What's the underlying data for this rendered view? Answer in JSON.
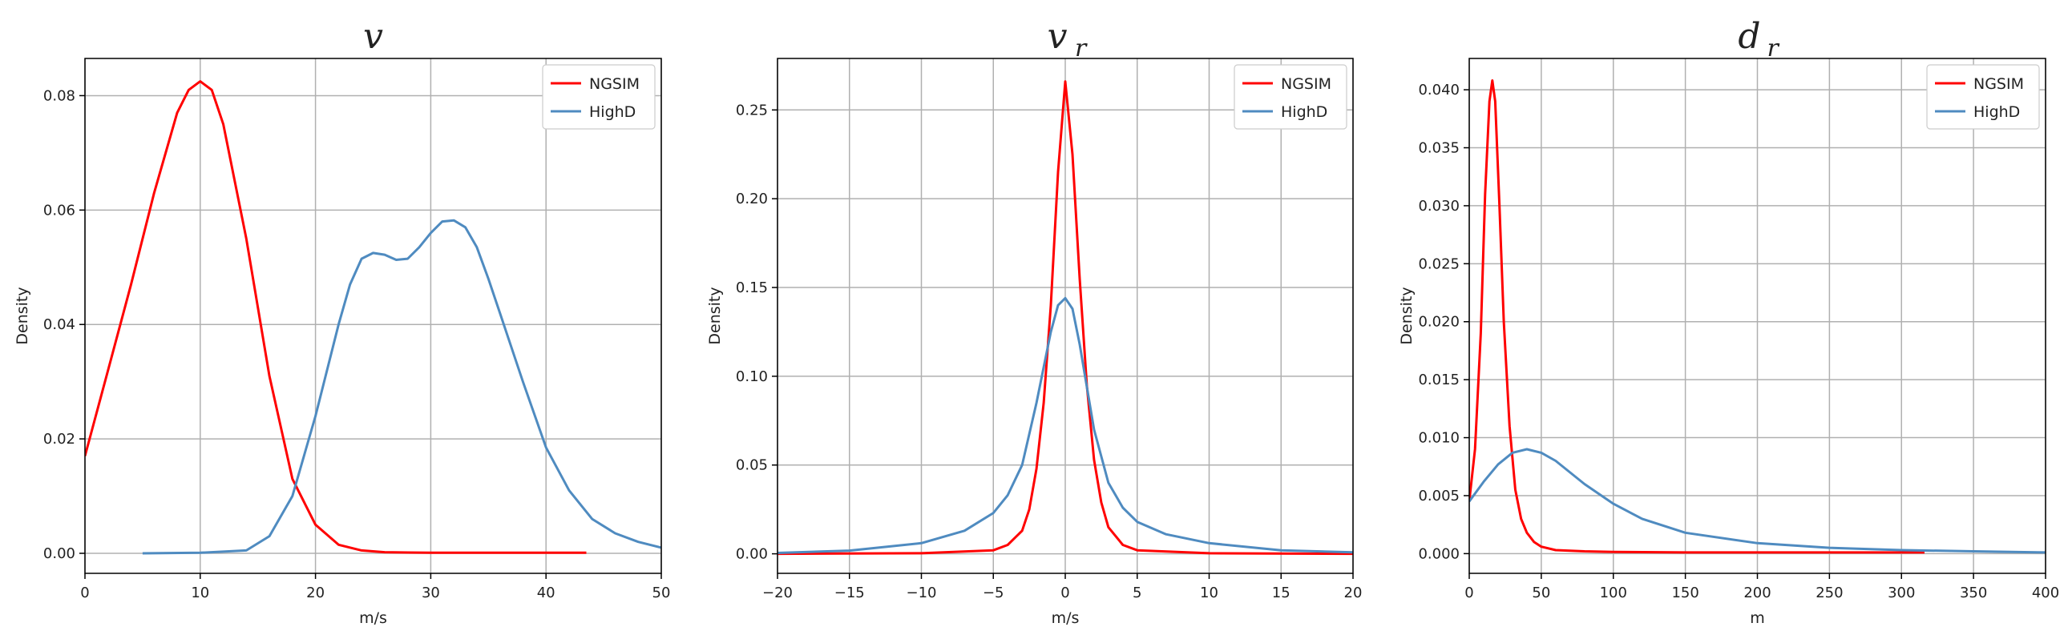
{
  "chart_data": [
    {
      "type": "line",
      "title": "v",
      "title_subscript": "",
      "xlabel": "m/s",
      "ylabel": "Density",
      "xlim": [
        0,
        50
      ],
      "ylim": [
        -0.0035,
        0.0865
      ],
      "xticks": [
        0,
        10,
        20,
        30,
        40,
        50
      ],
      "xtick_labels": [
        "0",
        "10",
        "20",
        "30",
        "40",
        "50"
      ],
      "yticks": [
        0,
        0.02,
        0.04,
        0.06,
        0.08
      ],
      "ytick_labels": [
        "0.00",
        "0.02",
        "0.04",
        "0.06",
        "0.08"
      ],
      "grid": true,
      "legend_position": "top-right",
      "series": [
        {
          "name": "NGSIM",
          "color": "#ff0000",
          "x": [
            0,
            2,
            4,
            6,
            8,
            9,
            10,
            11,
            12,
            14,
            16,
            18,
            20,
            22,
            24,
            26,
            30,
            35,
            40,
            43.5
          ],
          "y": [
            0.017,
            0.032,
            0.047,
            0.063,
            0.077,
            0.081,
            0.0825,
            0.081,
            0.075,
            0.055,
            0.031,
            0.013,
            0.005,
            0.0015,
            0.0005,
            0.0002,
            0.0001,
            0.0001,
            0.0001,
            0.0001
          ]
        },
        {
          "name": "HighD",
          "color": "#4f8bc0",
          "x": [
            5,
            10,
            14,
            16,
            18,
            20,
            22,
            23,
            24,
            25,
            26,
            27,
            28,
            29,
            30,
            31,
            32,
            33,
            34,
            35,
            36,
            38,
            40,
            42,
            44,
            46,
            48,
            50
          ],
          "y": [
            0,
            0.0001,
            0.0005,
            0.003,
            0.01,
            0.024,
            0.04,
            0.047,
            0.0515,
            0.0525,
            0.0522,
            0.0513,
            0.0515,
            0.0535,
            0.056,
            0.058,
            0.0582,
            0.057,
            0.0535,
            0.048,
            0.042,
            0.03,
            0.0185,
            0.011,
            0.006,
            0.0035,
            0.002,
            0.001
          ]
        }
      ]
    },
    {
      "type": "line",
      "title": "v",
      "title_subscript": "r",
      "xlabel": "m/s",
      "ylabel": "Density",
      "xlim": [
        -20,
        20
      ],
      "ylim": [
        -0.011,
        0.279
      ],
      "xticks": [
        -20,
        -15,
        -10,
        -5,
        0,
        5,
        10,
        15,
        20
      ],
      "xtick_labels": [
        "−20",
        "−15",
        "−10",
        "−5",
        "0",
        "5",
        "10",
        "15",
        "20"
      ],
      "yticks": [
        0,
        0.05,
        0.1,
        0.15,
        0.2,
        0.25
      ],
      "ytick_labels": [
        "0.00",
        "0.05",
        "0.10",
        "0.15",
        "0.20",
        "0.25"
      ],
      "grid": true,
      "legend_position": "top-right",
      "series": [
        {
          "name": "NGSIM",
          "color": "#ff0000",
          "x": [
            -20,
            -10,
            -5,
            -4,
            -3,
            -2.5,
            -2,
            -1.5,
            -1,
            -0.5,
            0,
            0.5,
            1,
            1.5,
            2,
            2.5,
            3,
            4,
            5,
            10,
            20
          ],
          "y": [
            0,
            0.0003,
            0.002,
            0.005,
            0.013,
            0.025,
            0.048,
            0.085,
            0.14,
            0.215,
            0.266,
            0.225,
            0.155,
            0.095,
            0.053,
            0.029,
            0.015,
            0.005,
            0.002,
            0.0003,
            0
          ]
        },
        {
          "name": "HighD",
          "color": "#4f8bc0",
          "x": [
            -20,
            -15,
            -10,
            -7,
            -5,
            -4,
            -3,
            -2,
            -1,
            -0.5,
            0,
            0.5,
            1,
            2,
            3,
            4,
            5,
            7,
            10,
            15,
            20
          ],
          "y": [
            0.0005,
            0.0018,
            0.006,
            0.013,
            0.023,
            0.033,
            0.05,
            0.085,
            0.125,
            0.14,
            0.144,
            0.138,
            0.118,
            0.07,
            0.04,
            0.026,
            0.018,
            0.011,
            0.006,
            0.002,
            0.0008
          ]
        }
      ]
    },
    {
      "type": "line",
      "title": "d",
      "title_subscript": "r",
      "xlabel": "m",
      "ylabel": "Density",
      "xlim": [
        0,
        400
      ],
      "ylim": [
        -0.0017,
        0.0427
      ],
      "xticks": [
        0,
        50,
        100,
        150,
        200,
        250,
        300,
        350,
        400
      ],
      "xtick_labels": [
        "0",
        "50",
        "100",
        "150",
        "200",
        "250",
        "300",
        "350",
        "400"
      ],
      "yticks": [
        0,
        0.005,
        0.01,
        0.015,
        0.02,
        0.025,
        0.03,
        0.035,
        0.04
      ],
      "ytick_labels": [
        "0.000",
        "0.005",
        "0.010",
        "0.015",
        "0.020",
        "0.025",
        "0.030",
        "0.035",
        "0.040"
      ],
      "grid": true,
      "legend_position": "top-right",
      "series": [
        {
          "name": "NGSIM",
          "color": "#ff0000",
          "x": [
            0,
            4,
            8,
            11,
            14,
            16,
            18,
            21,
            24,
            28,
            32,
            36,
            40,
            45,
            50,
            60,
            80,
            100,
            150,
            200,
            300,
            316
          ],
          "y": [
            0.0045,
            0.009,
            0.019,
            0.031,
            0.039,
            0.0408,
            0.039,
            0.03,
            0.02,
            0.011,
            0.0055,
            0.003,
            0.0018,
            0.001,
            0.0006,
            0.0003,
            0.0002,
            0.00015,
            0.0001,
            0.0001,
            0.0001,
            0.0001
          ]
        },
        {
          "name": "HighD",
          "color": "#4f8bc0",
          "x": [
            0,
            10,
            20,
            30,
            40,
            50,
            60,
            70,
            80,
            100,
            120,
            150,
            200,
            250,
            300,
            350,
            400
          ],
          "y": [
            0.0045,
            0.0062,
            0.0077,
            0.0087,
            0.009,
            0.0087,
            0.008,
            0.007,
            0.006,
            0.0043,
            0.003,
            0.0018,
            0.0009,
            0.0005,
            0.0003,
            0.0002,
            0.0001
          ]
        }
      ]
    }
  ]
}
